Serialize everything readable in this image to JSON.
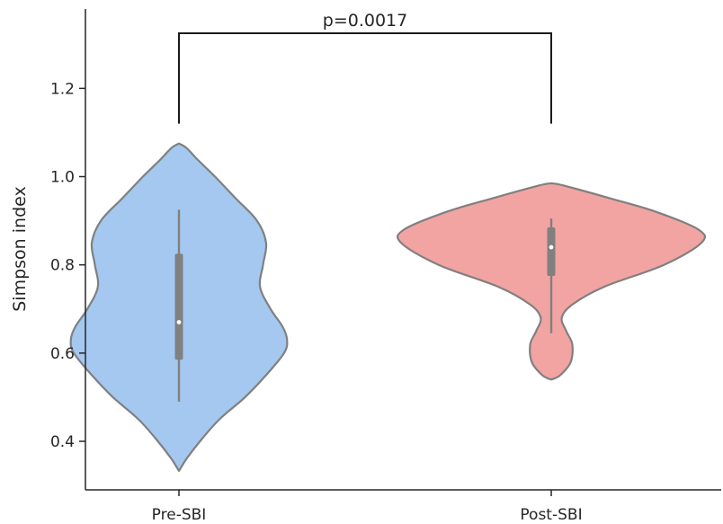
{
  "chart_data": {
    "type": "violin",
    "title": "",
    "xlabel": "",
    "ylabel": "Simpson index",
    "ylim": [
      0.29,
      1.38
    ],
    "yticks": [
      "0.4",
      "0.6",
      "0.8",
      "1.0",
      "1.2"
    ],
    "grid": false,
    "categories": [
      "Pre-SBI",
      "Post-SBI"
    ],
    "colors": {
      "Pre-SBI": "#a4c8ef",
      "Post-SBI": "#f2a4a2",
      "outline": "#808080"
    },
    "series": [
      {
        "category": "Pre-SBI",
        "density_profile": [
          [
            0.333,
            0.0
          ],
          [
            0.36,
            0.05
          ],
          [
            0.4,
            0.14
          ],
          [
            0.45,
            0.27
          ],
          [
            0.5,
            0.44
          ],
          [
            0.55,
            0.58
          ],
          [
            0.6,
            0.7
          ],
          [
            0.63,
            0.72
          ],
          [
            0.66,
            0.69
          ],
          [
            0.7,
            0.61
          ],
          [
            0.75,
            0.54
          ],
          [
            0.8,
            0.56
          ],
          [
            0.85,
            0.58
          ],
          [
            0.9,
            0.52
          ],
          [
            0.95,
            0.38
          ],
          [
            1.0,
            0.24
          ],
          [
            1.04,
            0.12
          ],
          [
            1.065,
            0.05
          ],
          [
            1.075,
            0.0
          ]
        ],
        "box_q1": 0.585,
        "median": 0.67,
        "box_q3": 0.825,
        "whisker_low": 0.49,
        "whisker_high": 0.925
      },
      {
        "category": "Post-SBI",
        "density_profile": [
          [
            0.54,
            0.0
          ],
          [
            0.55,
            0.06
          ],
          [
            0.58,
            0.13
          ],
          [
            0.62,
            0.14
          ],
          [
            0.65,
            0.1
          ],
          [
            0.68,
            0.07
          ],
          [
            0.71,
            0.14
          ],
          [
            0.75,
            0.35
          ],
          [
            0.8,
            0.75
          ],
          [
            0.85,
            1.0
          ],
          [
            0.88,
            0.98
          ],
          [
            0.92,
            0.7
          ],
          [
            0.95,
            0.4
          ],
          [
            0.98,
            0.08
          ],
          [
            0.985,
            0.0
          ]
        ],
        "box_q1": 0.775,
        "median": 0.84,
        "box_q3": 0.885,
        "whisker_low": 0.645,
        "whisker_high": 0.905
      }
    ],
    "annotation": {
      "text": "p=0.0017",
      "bracket_top": 1.325,
      "bracket_bottom": 1.12
    }
  }
}
